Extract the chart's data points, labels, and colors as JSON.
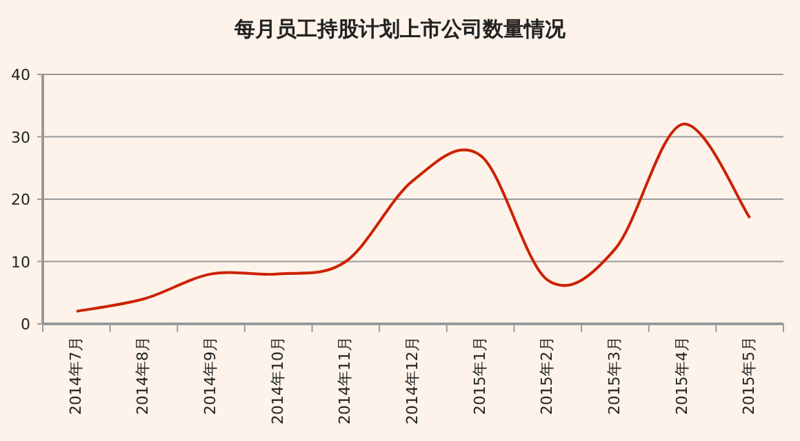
{
  "chart_data": {
    "type": "line",
    "title": "每月员工持股计划上市公司数量情况",
    "categories": [
      "2014年7月",
      "2014年8月",
      "2014年9月",
      "2014年10月",
      "2014年11月",
      "2014年12月",
      "2015年1月",
      "2015年2月",
      "2015年3月",
      "2015年4月",
      "2015年5月"
    ],
    "values": [
      2,
      4,
      8,
      8,
      10,
      23,
      27,
      7,
      12,
      32,
      17
    ],
    "color": "#cc2200",
    "ylim": [
      0,
      40
    ],
    "yticks": [
      0,
      10,
      20,
      30,
      40
    ],
    "grid": "y",
    "marker": "none",
    "line_style": "solid"
  }
}
